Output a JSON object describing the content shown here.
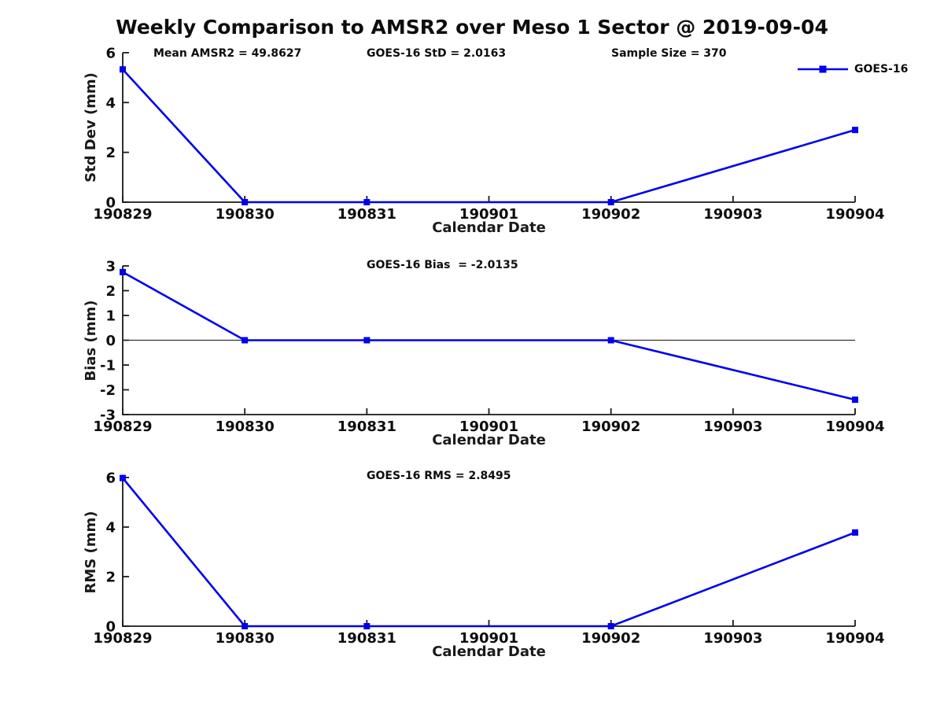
{
  "title": "Weekly Comparison to AMSR2 over Meso 1 Sector @ 2019-09-04",
  "legend": {
    "label": "GOES-16",
    "color": "#0000EE",
    "marker": "filled-square",
    "position": "top-right",
    "box": false
  },
  "colors": {
    "line": "#0000EE",
    "axis": "#1a1a1a",
    "text": "#0d0d0d",
    "zero_line": "#333333",
    "background": "#ffffff"
  },
  "x_axis": {
    "label": "Calendar Date",
    "categories": [
      "190829",
      "190830",
      "190831",
      "190901",
      "190902",
      "190903",
      "190904"
    ]
  },
  "chart_data": [
    {
      "type": "line",
      "name": "std-dev",
      "ylabel": "Std Dev (mm)",
      "xlabel": "Calendar Date",
      "ylim": [
        0,
        6
      ],
      "yticks": [
        0,
        2,
        4,
        6
      ],
      "categories": [
        "190829",
        "190830",
        "190831",
        "190901",
        "190902",
        "190903",
        "190904"
      ],
      "annotations": [
        "Mean AMSR2 = 49.8627",
        "GOES-16 StD = 2.0163",
        "Sample Size = 370"
      ],
      "zero_line": false,
      "grid": false,
      "series": [
        {
          "name": "GOES-16",
          "x": [
            "190829",
            "190830",
            "190831",
            "190902",
            "190904"
          ],
          "x_idx": [
            0,
            1,
            2,
            4,
            6
          ],
          "values": [
            5.33,
            0,
            0,
            0,
            2.9
          ]
        }
      ]
    },
    {
      "type": "line",
      "name": "bias",
      "ylabel": "Bias (mm)",
      "xlabel": "Calendar Date",
      "ylim": [
        -3,
        3
      ],
      "yticks": [
        3,
        2,
        1,
        0,
        -1,
        -2,
        -3
      ],
      "categories": [
        "190829",
        "190830",
        "190831",
        "190901",
        "190902",
        "190903",
        "190904"
      ],
      "annotations": [
        "GOES-16 Bias  = -2.0135"
      ],
      "zero_line": true,
      "grid": false,
      "series": [
        {
          "name": "GOES-16",
          "x": [
            "190829",
            "190830",
            "190831",
            "190902",
            "190904"
          ],
          "x_idx": [
            0,
            1,
            2,
            4,
            6
          ],
          "values": [
            2.75,
            0,
            0,
            0,
            -2.4
          ]
        }
      ]
    },
    {
      "type": "line",
      "name": "rms",
      "ylabel": "RMS (mm)",
      "xlabel": "Calendar Date",
      "ylim": [
        0,
        6
      ],
      "yticks": [
        0,
        2,
        4,
        6
      ],
      "categories": [
        "190829",
        "190830",
        "190831",
        "190901",
        "190902",
        "190903",
        "190904"
      ],
      "annotations": [
        "GOES-16 RMS = 2.8495"
      ],
      "zero_line": false,
      "grid": false,
      "series": [
        {
          "name": "GOES-16",
          "x": [
            "190829",
            "190830",
            "190831",
            "190902",
            "190904"
          ],
          "x_idx": [
            0,
            1,
            2,
            4,
            6
          ],
          "values": [
            5.98,
            0,
            0,
            0,
            3.78
          ]
        }
      ]
    }
  ]
}
